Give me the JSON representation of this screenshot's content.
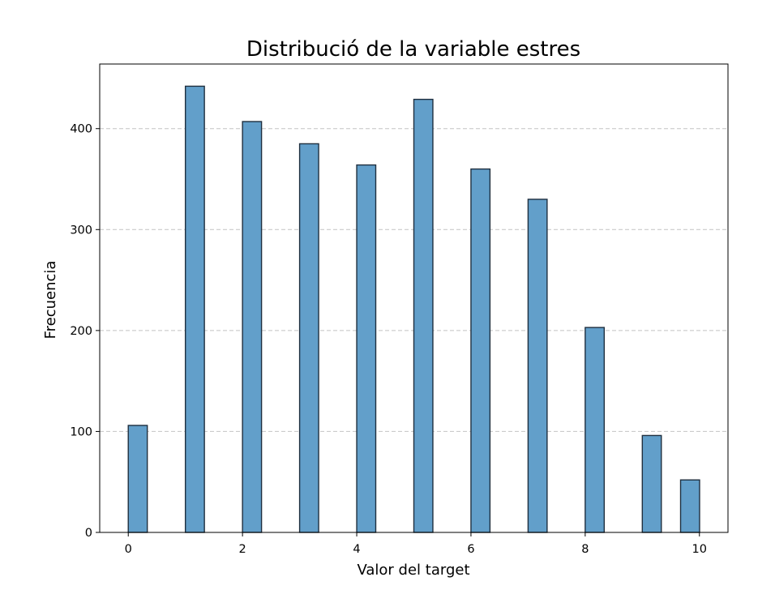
{
  "chart_data": {
    "type": "bar",
    "title": "Distribució de la variable estres",
    "xlabel": "Valor del target",
    "ylabel": "Frecuencia",
    "x": [
      0,
      1,
      2,
      3,
      4,
      5,
      6,
      7,
      8,
      9,
      9.67
    ],
    "values": [
      106,
      442,
      407,
      385,
      364,
      429,
      360,
      330,
      203,
      96,
      52
    ],
    "bin_width": 0.333,
    "xlim": [
      -0.5,
      10.5
    ],
    "ylim": [
      0,
      464
    ],
    "xticks": [
      0,
      2,
      4,
      6,
      8,
      10
    ],
    "yticks": [
      0,
      100,
      200,
      300,
      400
    ],
    "grid": "y dashed",
    "legend": "none",
    "colors": {
      "bar_fill": "#629fca",
      "bar_edge": "#1f2f3f",
      "grid": "#c4c4c4"
    }
  }
}
